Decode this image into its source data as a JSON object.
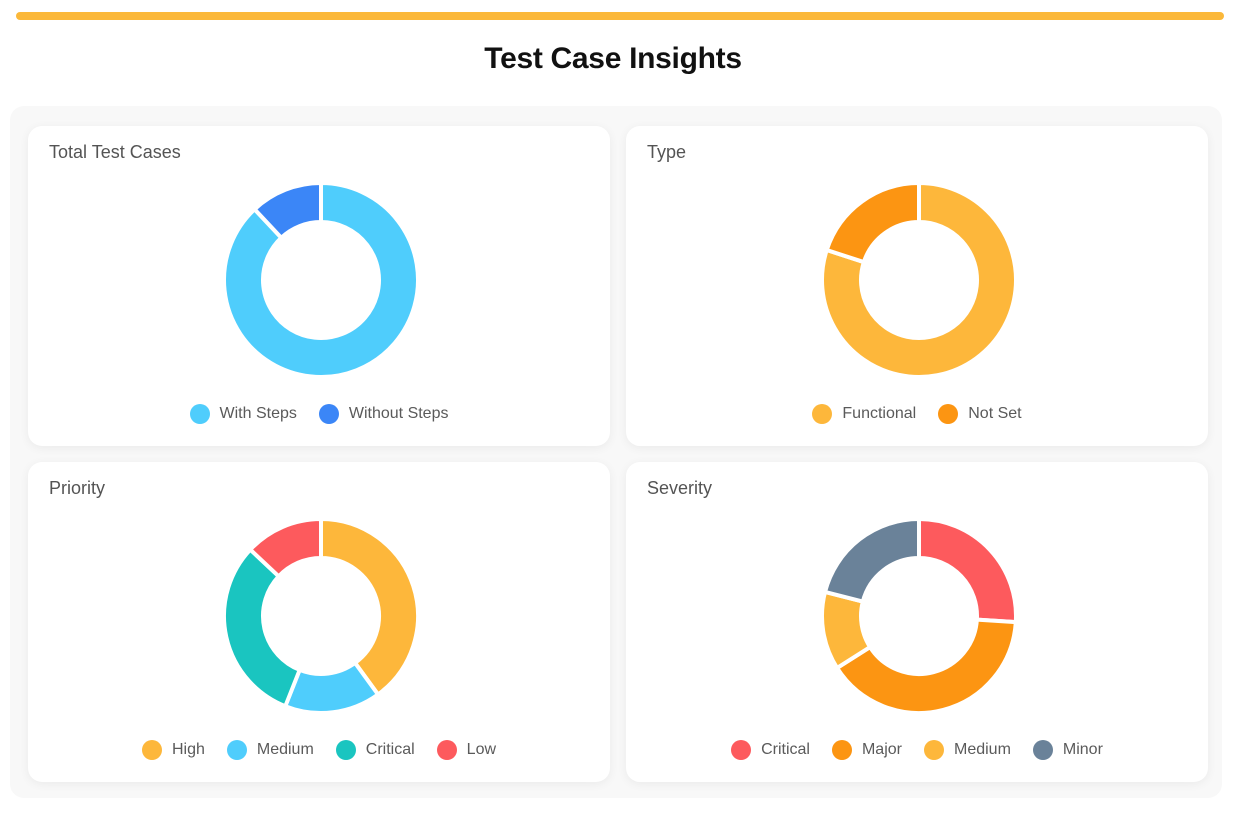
{
  "page": {
    "title": "Test Case Insights"
  },
  "colors": {
    "top_bar": "#fbb83a",
    "slice_gap": "#ffffff"
  },
  "chart_data": [
    {
      "type": "pie",
      "title": "Total Test Cases",
      "categories": [
        "With Steps",
        "Without Steps"
      ],
      "values": [
        88,
        12
      ],
      "colors": [
        "#4fcdfc",
        "#3b86f7"
      ],
      "legend": "bottom"
    },
    {
      "type": "pie",
      "title": "Type",
      "categories": [
        "Functional",
        "Not Set"
      ],
      "values": [
        80,
        20
      ],
      "colors": [
        "#fdb73b",
        "#fc9512"
      ],
      "legend": "bottom"
    },
    {
      "type": "pie",
      "title": "Priority",
      "categories": [
        "High",
        "Medium",
        "Critical",
        "Low"
      ],
      "values": [
        40,
        16,
        31,
        13
      ],
      "colors": [
        "#fdb73b",
        "#4fcdfc",
        "#1ac5c0",
        "#fd5a5d"
      ],
      "legend": "bottom"
    },
    {
      "type": "pie",
      "title": "Severity",
      "categories": [
        "Critical",
        "Major",
        "Medium",
        "Minor"
      ],
      "values": [
        26,
        40,
        13,
        21
      ],
      "colors": [
        "#fd5a5d",
        "#fc9512",
        "#fdb73b",
        "#6a8299"
      ],
      "legend": "bottom"
    }
  ]
}
